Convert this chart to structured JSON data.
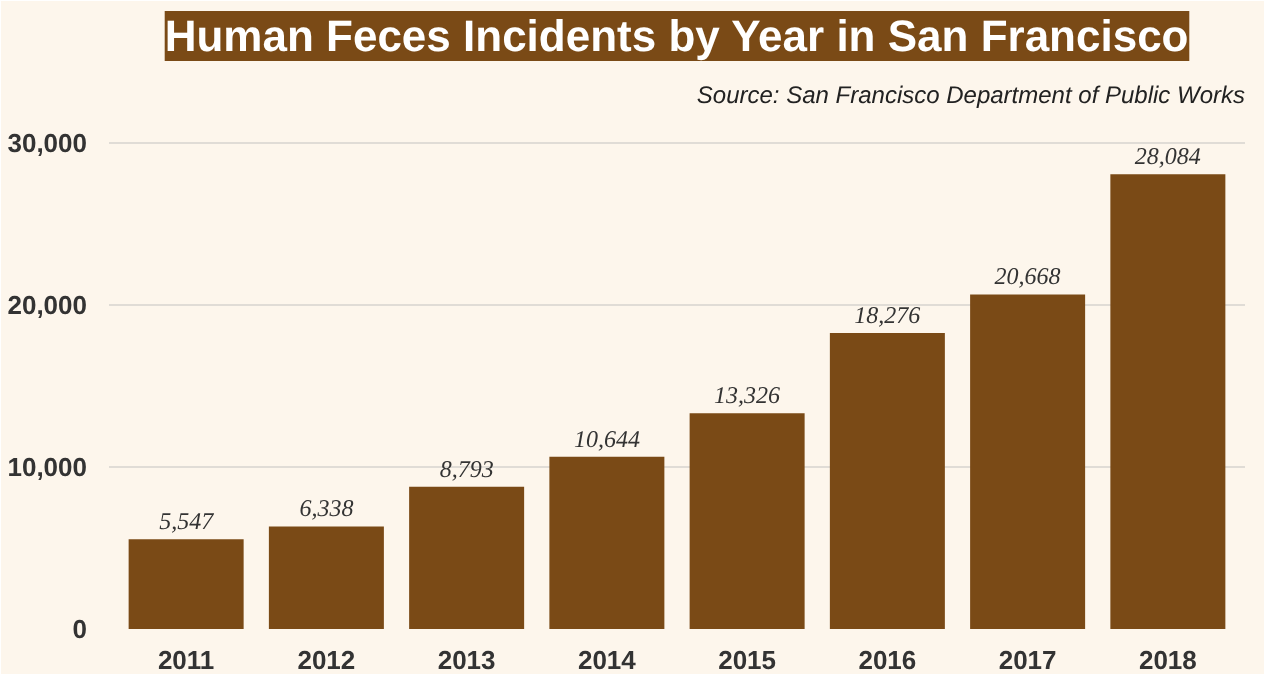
{
  "chart_data": {
    "type": "bar",
    "title": "Human Feces Incidents by Year in San Francisco",
    "subtitle": "Source: San Francisco Department of Public Works",
    "categories": [
      "2011",
      "2012",
      "2013",
      "2014",
      "2015",
      "2016",
      "2017",
      "2018"
    ],
    "values": [
      5547,
      6338,
      8793,
      10644,
      13326,
      18276,
      20668,
      28084
    ],
    "color": "#7a4a16",
    "ylim": [
      0,
      31500
    ],
    "yticks": [
      0,
      {
        "value": 10000,
        "label": "10,000"
      },
      {
        "value": 20000,
        "label": "20,000"
      },
      {
        "value": 30000,
        "label": "30,000"
      }
    ],
    "grid": "y",
    "value_labels": [
      "5,547",
      "6,338",
      "8,793",
      "10,644",
      "13,326",
      "18,276",
      "20,668",
      "28,084"
    ]
  }
}
